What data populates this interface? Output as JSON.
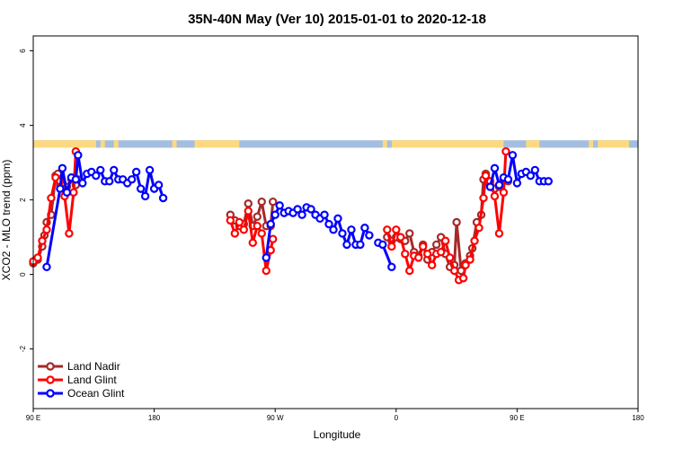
{
  "chart_data": {
    "type": "line",
    "title": "35N-40N May (Ver 10)   2015-01-01 to 2020-12-18",
    "xlabel": "Longitude",
    "ylabel": "XCO2 - MLO trend (ppm)",
    "xlim": [
      -90,
      180
    ],
    "ylim": [
      -3.6,
      6.4
    ],
    "x_ticks": [
      {
        "value": -90,
        "label": "90 E"
      },
      {
        "value": -36,
        "label": "180"
      },
      {
        "value": 18,
        "label": "90 W"
      },
      {
        "value": 72,
        "label": "0"
      },
      {
        "value": 126,
        "label": "90 E"
      },
      {
        "value": 180,
        "label": "180"
      }
    ],
    "y_ticks": [
      {
        "value": -2,
        "label": "-2"
      },
      {
        "value": 0,
        "label": "0"
      },
      {
        "value": 2,
        "label": "2"
      },
      {
        "value": 4,
        "label": "4"
      },
      {
        "value": 6,
        "label": "6"
      }
    ],
    "legend": {
      "position": "bottom-left"
    },
    "land_ocean_band": {
      "y_range": [
        3.4,
        3.6
      ],
      "land_color": "#fcd980",
      "ocean_color": "#a4bedf",
      "land_segments": [
        [
          -90,
          -68
        ],
        [
          -69,
          -62
        ],
        [
          -54,
          -52
        ],
        [
          -28,
          -26
        ],
        [
          -18,
          2
        ],
        [
          66,
          68
        ],
        [
          70,
          120
        ],
        [
          130,
          136
        ],
        [
          158,
          160
        ],
        [
          162,
          176
        ],
        [
          -60,
          -58
        ]
      ]
    },
    "series": [
      {
        "name": "Land Nadir",
        "color": "#a52a2a",
        "segments": [
          [
            [
              -90,
              0.3
            ],
            [
              -88,
              0.4
            ],
            [
              -86,
              0.75
            ],
            [
              -85,
              1.05
            ],
            [
              -84,
              1.4
            ],
            [
              -82,
              1.6
            ],
            [
              -80,
              2.65
            ],
            [
              -79,
              2.7
            ],
            [
              -78,
              2.4
            ],
            [
              -77,
              2.4
            ],
            [
              -76,
              2.3
            ],
            [
              -75,
              2.35
            ],
            [
              -73,
              2.55
            ],
            [
              -71,
              2.4
            ],
            [
              -70,
              2.55
            ]
          ],
          [
            [
              -2,
              1.6
            ],
            [
              0,
              1.45
            ],
            [
              2,
              1.3
            ],
            [
              4,
              1.35
            ],
            [
              6,
              1.9
            ],
            [
              8,
              1.3
            ],
            [
              10,
              1.55
            ],
            [
              12,
              1.95
            ],
            [
              14,
              1.3
            ],
            [
              16,
              1.3
            ],
            [
              17,
              1.95
            ]
          ],
          [
            [
              68,
              1.0
            ],
            [
              70,
              0.9
            ],
            [
              72,
              1.0
            ],
            [
              74,
              0.95
            ],
            [
              76,
              0.9
            ],
            [
              78,
              1.1
            ],
            [
              80,
              0.6
            ],
            [
              82,
              0.5
            ],
            [
              84,
              0.8
            ],
            [
              86,
              0.4
            ],
            [
              88,
              0.6
            ],
            [
              90,
              0.8
            ],
            [
              92,
              1.0
            ],
            [
              94,
              0.55
            ],
            [
              96,
              0.2
            ],
            [
              98,
              0.25
            ],
            [
              99,
              1.4
            ],
            [
              101,
              0.1
            ],
            [
              103,
              0.3
            ],
            [
              105,
              0.5
            ],
            [
              106,
              0.7
            ],
            [
              108,
              1.4
            ],
            [
              110,
              1.6
            ],
            [
              111,
              2.55
            ],
            [
              112,
              2.7
            ],
            [
              114,
              2.4
            ],
            [
              116,
              2.3
            ],
            [
              118,
              2.35
            ],
            [
              120,
              2.55
            ],
            [
              122,
              2.5
            ]
          ]
        ]
      },
      {
        "name": "Land Glint",
        "color": "#ff0000",
        "segments": [
          [
            [
              -90,
              0.35
            ],
            [
              -88,
              0.45
            ],
            [
              -86,
              0.9
            ],
            [
              -84,
              1.2
            ],
            [
              -82,
              2.05
            ],
            [
              -80,
              2.6
            ],
            [
              -78,
              2.5
            ],
            [
              -76,
              2.1
            ],
            [
              -74,
              1.1
            ],
            [
              -72,
              2.2
            ],
            [
              -71,
              3.3
            ]
          ],
          [
            [
              -2,
              1.45
            ],
            [
              0,
              1.1
            ],
            [
              2,
              1.4
            ],
            [
              4,
              1.2
            ],
            [
              6,
              1.7
            ],
            [
              8,
              0.85
            ],
            [
              10,
              1.3
            ],
            [
              12,
              1.1
            ],
            [
              14,
              0.1
            ],
            [
              16,
              0.65
            ],
            [
              17,
              0.95
            ]
          ],
          [
            [
              68,
              1.2
            ],
            [
              70,
              0.75
            ],
            [
              72,
              1.2
            ],
            [
              74,
              1.0
            ],
            [
              76,
              0.55
            ],
            [
              78,
              0.1
            ],
            [
              80,
              0.5
            ],
            [
              82,
              0.45
            ],
            [
              84,
              0.75
            ],
            [
              86,
              0.55
            ],
            [
              88,
              0.25
            ],
            [
              90,
              0.55
            ],
            [
              92,
              0.6
            ],
            [
              94,
              0.9
            ],
            [
              96,
              0.45
            ],
            [
              98,
              0.1
            ],
            [
              100,
              -0.15
            ],
            [
              102,
              -0.1
            ],
            [
              103,
              0.25
            ],
            [
              105,
              0.4
            ],
            [
              107,
              0.9
            ],
            [
              109,
              1.25
            ],
            [
              111,
              2.05
            ],
            [
              112,
              2.65
            ],
            [
              114,
              2.5
            ],
            [
              116,
              2.1
            ],
            [
              118,
              1.1
            ],
            [
              120,
              2.2
            ],
            [
              121,
              3.3
            ]
          ]
        ]
      },
      {
        "name": "Ocean Glint",
        "color": "#0000ff",
        "segments": [
          [
            [
              -84,
              0.2
            ],
            [
              -78,
              2.3
            ],
            [
              -77,
              2.85
            ],
            [
              -75,
              2.2
            ],
            [
              -73,
              2.6
            ],
            [
              -71,
              2.55
            ],
            [
              -70,
              3.2
            ],
            [
              -68,
              2.45
            ],
            [
              -66,
              2.7
            ],
            [
              -64,
              2.75
            ],
            [
              -62,
              2.65
            ],
            [
              -60,
              2.8
            ],
            [
              -58,
              2.5
            ],
            [
              -56,
              2.5
            ],
            [
              -54,
              2.8
            ],
            [
              -52,
              2.55
            ],
            [
              -50,
              2.55
            ],
            [
              -48,
              2.45
            ],
            [
              -46,
              2.55
            ],
            [
              -44,
              2.75
            ],
            [
              -42,
              2.3
            ],
            [
              -40,
              2.1
            ],
            [
              -38,
              2.8
            ],
            [
              -36,
              2.3
            ],
            [
              -34,
              2.4
            ],
            [
              -32,
              2.05
            ]
          ],
          [
            [
              14,
              0.45
            ],
            [
              16,
              1.35
            ],
            [
              18,
              1.6
            ],
            [
              20,
              1.85
            ],
            [
              22,
              1.65
            ],
            [
              24,
              1.7
            ],
            [
              26,
              1.65
            ],
            [
              28,
              1.75
            ],
            [
              30,
              1.6
            ],
            [
              32,
              1.8
            ],
            [
              34,
              1.75
            ],
            [
              36,
              1.6
            ],
            [
              38,
              1.5
            ],
            [
              40,
              1.6
            ],
            [
              42,
              1.35
            ],
            [
              44,
              1.2
            ],
            [
              46,
              1.5
            ],
            [
              48,
              1.1
            ],
            [
              50,
              0.8
            ],
            [
              52,
              1.2
            ],
            [
              54,
              0.8
            ],
            [
              56,
              0.8
            ],
            [
              58,
              1.25
            ],
            [
              60,
              1.05
            ]
          ],
          [
            [
              64,
              0.85
            ],
            [
              66,
              0.8
            ],
            [
              70,
              0.2
            ]
          ],
          [
            [
              114,
              2.35
            ],
            [
              116,
              2.85
            ],
            [
              118,
              2.4
            ],
            [
              120,
              2.6
            ],
            [
              122,
              2.55
            ],
            [
              124,
              3.2
            ],
            [
              126,
              2.45
            ],
            [
              128,
              2.7
            ],
            [
              130,
              2.75
            ],
            [
              132,
              2.65
            ],
            [
              134,
              2.8
            ],
            [
              136,
              2.5
            ],
            [
              138,
              2.5
            ],
            [
              140,
              2.5
            ]
          ]
        ]
      }
    ]
  }
}
